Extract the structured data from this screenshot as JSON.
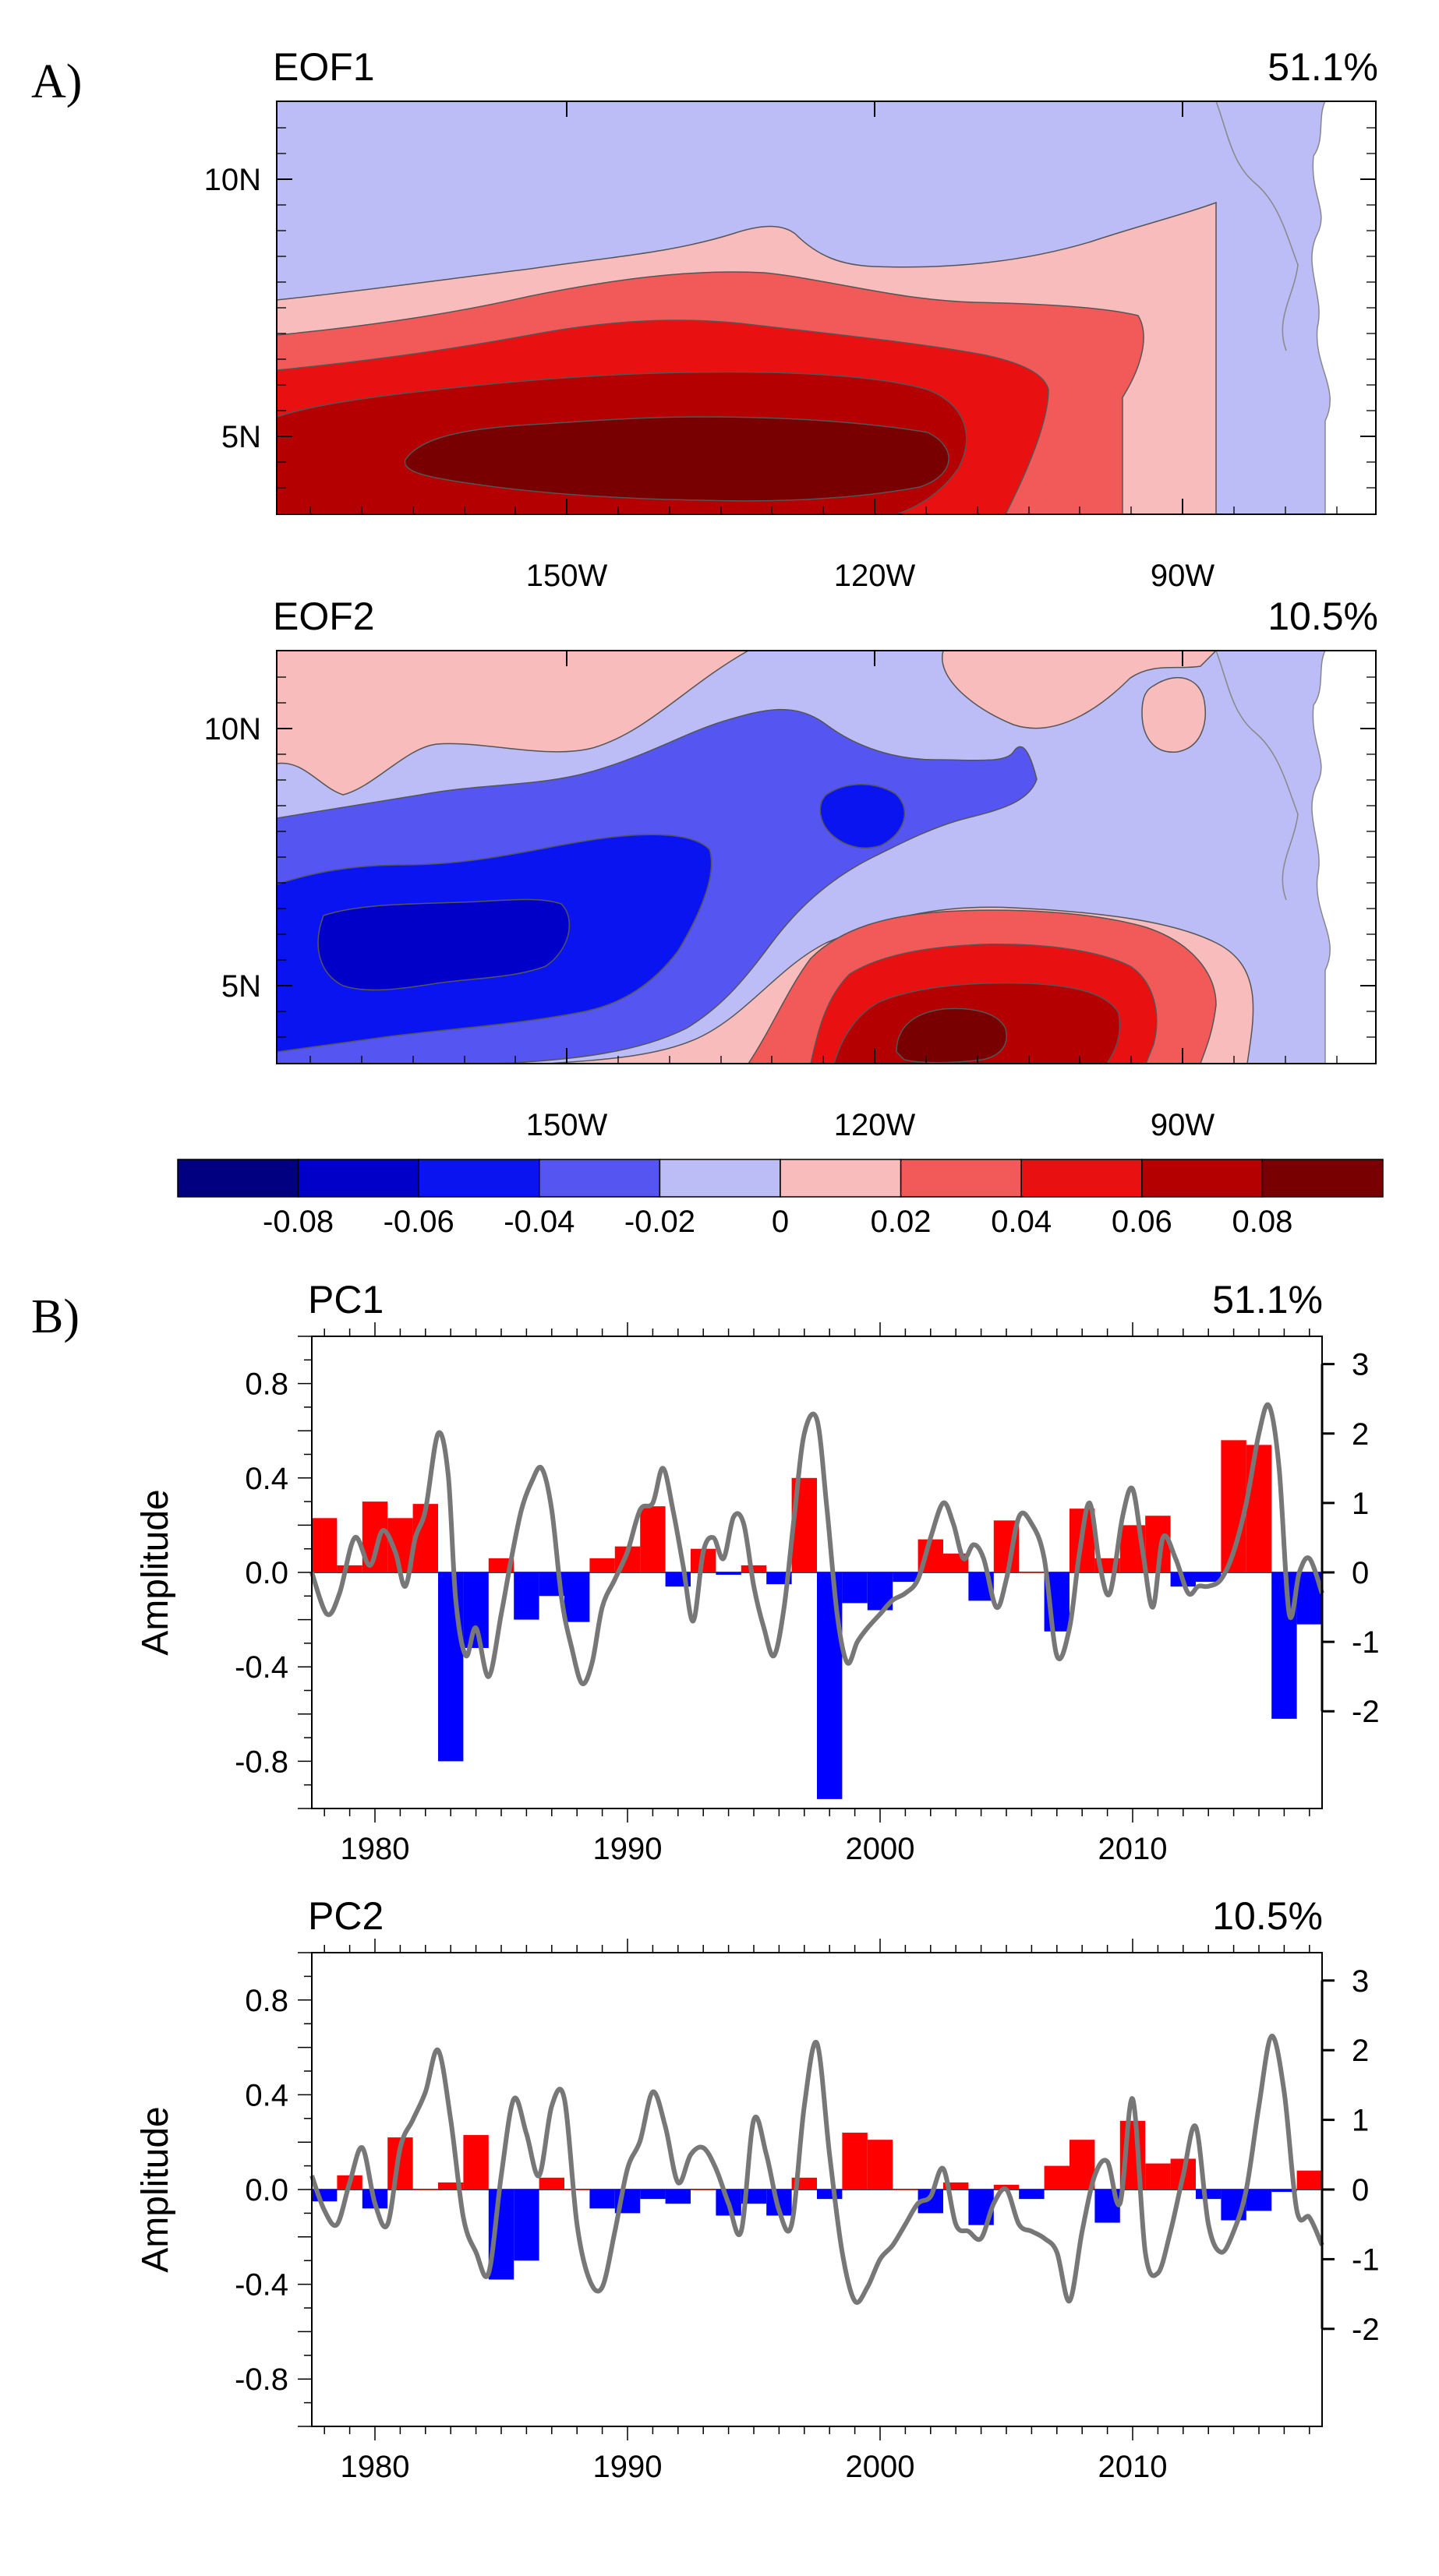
{
  "panel_labels": {
    "a": "A)",
    "b": "B)"
  },
  "chart_data": [
    {
      "type": "heatmap",
      "id": "eof1",
      "title": "EOF1",
      "variance_label": "51.1%",
      "x_ticks": [
        "150W",
        "120W",
        "90W"
      ],
      "y_ticks": [
        "10N",
        "5N"
      ],
      "regions": [
        {
          "level_index": 4,
          "value_range": "-0.02..0"
        },
        {
          "level_index": 5,
          "value_range": "0..0.02"
        },
        {
          "level_index": 6,
          "value_range": "0.02..0.04"
        },
        {
          "level_index": 7,
          "value_range": "0.04..0.06"
        },
        {
          "level_index": 8,
          "value_range": "0.06..0.08"
        }
      ]
    },
    {
      "type": "heatmap",
      "id": "eof2",
      "title": "EOF2",
      "variance_label": "10.5%",
      "x_ticks": [
        "150W",
        "120W",
        "90W"
      ],
      "y_ticks": [
        "10N",
        "5N"
      ],
      "regions": [
        {
          "level_index": 5,
          "value_range": "0..0.02"
        },
        {
          "level_index": 4,
          "value_range": "-0.02..0"
        },
        {
          "level_index": 3,
          "value_range": "-0.04..-0.02"
        },
        {
          "level_index": 2,
          "value_range": "-0.06..-0.04"
        },
        {
          "level_index": 1,
          "value_range": "-0.08..-0.06"
        },
        {
          "level_index": 6,
          "value_range": "0.02..0.04"
        },
        {
          "level_index": 7,
          "value_range": "0.04..0.06"
        },
        {
          "level_index": 8,
          "value_range": "0.06..0.08"
        },
        {
          "level_index": 9,
          "value_range": ">0.08"
        }
      ]
    },
    {
      "type": "bar",
      "id": "pc1",
      "title": "PC1",
      "variance_label": "51.1%",
      "ylabel": "Amplitude",
      "ylim": [
        -1.0,
        1.0
      ],
      "y_ticks": [
        "0.8",
        "0.4",
        "0.0",
        "-0.4",
        "-0.8"
      ],
      "y2lim": [
        -3.4,
        3.4
      ],
      "y2_ticks": [
        "3",
        "2",
        "1",
        "0",
        "-1",
        "-2"
      ],
      "x_ticks": [
        "1980",
        "1990",
        "2000",
        "2010"
      ],
      "xlim": [
        1977.5,
        2017.5
      ],
      "years": [
        1978,
        1979,
        1980,
        1981,
        1982,
        1983,
        1984,
        1985,
        1986,
        1987,
        1988,
        1989,
        1990,
        1991,
        1992,
        1993,
        1994,
        1995,
        1996,
        1997,
        1998,
        1999,
        2000,
        2001,
        2002,
        2003,
        2004,
        2005,
        2006,
        2007,
        2008,
        2009,
        2010,
        2011,
        2012,
        2013,
        2014,
        2015,
        2016,
        2017
      ],
      "values": [
        0.23,
        0.03,
        0.3,
        0.23,
        0.29,
        -0.8,
        -0.32,
        0.06,
        -0.2,
        -0.1,
        -0.21,
        0.06,
        0.11,
        0.28,
        -0.06,
        0.1,
        -0.01,
        0.03,
        -0.05,
        0.4,
        -0.96,
        -0.13,
        -0.16,
        -0.04,
        0.14,
        0.08,
        -0.12,
        0.22,
        0.0,
        -0.25,
        0.27,
        0.06,
        0.2,
        0.24,
        -0.06,
        -0.04,
        0.56,
        0.54,
        -0.62,
        -0.22
      ],
      "series_line": {
        "name": "index",
        "t": [
          1977.5,
          1978.1,
          1978.6,
          1979.2,
          1979.8,
          1980.3,
          1980.8,
          1981.2,
          1981.6,
          1982.0,
          1982.5,
          1982.9,
          1983.2,
          1983.6,
          1984.0,
          1984.5,
          1985.0,
          1985.4,
          1985.8,
          1986.2,
          1986.6,
          1987.0,
          1987.4,
          1987.8,
          1988.2,
          1988.6,
          1989.0,
          1989.5,
          1990.0,
          1990.5,
          1991.0,
          1991.4,
          1991.8,
          1992.2,
          1992.6,
          1993.0,
          1993.4,
          1993.8,
          1994.2,
          1994.6,
          1995.0,
          1995.4,
          1995.8,
          1996.2,
          1996.6,
          1997.0,
          1997.5,
          1997.9,
          1998.3,
          1998.7,
          1999.1,
          1999.5,
          2000.0,
          2000.5,
          2001.0,
          2001.5,
          2002.0,
          2002.5,
          2002.9,
          2003.3,
          2003.7,
          2004.1,
          2004.6,
          2005.0,
          2005.5,
          2006.0,
          2006.5,
          2007.0,
          2007.5,
          2007.9,
          2008.3,
          2008.7,
          2009.1,
          2009.6,
          2010.0,
          2010.4,
          2010.8,
          2011.2,
          2011.7,
          2012.2,
          2012.6,
          2013.0,
          2013.5,
          2014.0,
          2014.5,
          2015.0,
          2015.4,
          2015.8,
          2016.2,
          2016.6,
          2017.0,
          2017.5
        ],
        "v": [
          0.0,
          -0.6,
          -0.3,
          0.5,
          0.1,
          0.6,
          0.3,
          -0.2,
          0.5,
          0.9,
          2.0,
          1.4,
          -0.4,
          -1.2,
          -0.8,
          -1.5,
          -0.6,
          0.2,
          0.9,
          1.3,
          1.5,
          0.9,
          -0.4,
          -1.1,
          -1.6,
          -1.3,
          -0.5,
          -0.1,
          0.3,
          0.9,
          1.0,
          1.5,
          0.9,
          0.1,
          -0.7,
          0.3,
          0.5,
          0.2,
          0.8,
          0.7,
          -0.2,
          -0.8,
          -1.2,
          -0.5,
          0.8,
          2.0,
          2.2,
          0.9,
          -0.6,
          -1.3,
          -1.0,
          -0.8,
          -0.6,
          -0.4,
          -0.3,
          -0.1,
          0.5,
          1.0,
          0.7,
          0.2,
          0.4,
          0.2,
          -0.5,
          -0.1,
          0.8,
          0.7,
          0.2,
          -1.2,
          -0.8,
          0.3,
          1.0,
          0.1,
          -0.3,
          0.8,
          1.2,
          0.3,
          -0.5,
          0.5,
          0.2,
          -0.3,
          -0.2,
          -0.2,
          -0.1,
          0.3,
          1.0,
          2.0,
          2.4,
          1.5,
          -0.6,
          0.0,
          0.2,
          -0.3
        ]
      }
    },
    {
      "type": "bar",
      "id": "pc2",
      "title": "PC2",
      "variance_label": "10.5%",
      "ylabel": "Amplitude",
      "ylim": [
        -1.0,
        1.0
      ],
      "y_ticks": [
        "0.8",
        "0.4",
        "0.0",
        "-0.4",
        "-0.8"
      ],
      "y2lim": [
        -3.4,
        3.4
      ],
      "y2_ticks": [
        "3",
        "2",
        "1",
        "0",
        "-1",
        "-2"
      ],
      "x_ticks": [
        "1980",
        "1990",
        "2000",
        "2010"
      ],
      "xlim": [
        1977.5,
        2017.5
      ],
      "years": [
        1978,
        1979,
        1980,
        1981,
        1982,
        1983,
        1984,
        1985,
        1986,
        1987,
        1988,
        1989,
        1990,
        1991,
        1992,
        1993,
        1994,
        1995,
        1996,
        1997,
        1998,
        1999,
        2000,
        2001,
        2002,
        2003,
        2004,
        2005,
        2006,
        2007,
        2008,
        2009,
        2010,
        2011,
        2012,
        2013,
        2014,
        2015,
        2016,
        2017
      ],
      "values": [
        -0.05,
        0.06,
        -0.08,
        0.22,
        0.0,
        0.03,
        0.23,
        -0.38,
        -0.3,
        0.05,
        0.0,
        -0.08,
        -0.1,
        -0.04,
        -0.06,
        0.0,
        -0.11,
        -0.06,
        -0.11,
        0.05,
        -0.04,
        0.24,
        0.21,
        0.0,
        -0.1,
        0.03,
        -0.15,
        0.02,
        -0.04,
        0.1,
        0.21,
        -0.14,
        0.29,
        0.11,
        0.13,
        -0.04,
        -0.13,
        -0.09,
        -0.01,
        0.08
      ],
      "series_line": {
        "name": "index",
        "t": [
          1977.5,
          1978.0,
          1978.5,
          1979.0,
          1979.5,
          1980.0,
          1980.5,
          1981.0,
          1981.5,
          1982.0,
          1982.5,
          1983.0,
          1983.5,
          1984.0,
          1984.5,
          1985.0,
          1985.5,
          1986.0,
          1986.5,
          1987.0,
          1987.5,
          1988.0,
          1988.5,
          1989.0,
          1989.5,
          1990.0,
          1990.5,
          1991.0,
          1991.5,
          1992.0,
          1992.5,
          1993.0,
          1993.5,
          1994.0,
          1994.5,
          1995.0,
          1995.5,
          1996.0,
          1996.5,
          1997.0,
          1997.5,
          1998.0,
          1998.5,
          1999.0,
          1999.5,
          2000.0,
          2000.5,
          2001.0,
          2001.5,
          2002.0,
          2002.5,
          2003.0,
          2003.5,
          2004.0,
          2004.5,
          2005.0,
          2005.5,
          2006.0,
          2006.5,
          2007.0,
          2007.5,
          2008.0,
          2008.5,
          2009.0,
          2009.5,
          2010.0,
          2010.5,
          2011.0,
          2011.5,
          2012.0,
          2012.5,
          2013.0,
          2013.5,
          2014.0,
          2014.5,
          2015.0,
          2015.5,
          2016.0,
          2016.5,
          2017.0,
          2017.5
        ],
        "v": [
          0.2,
          -0.3,
          -0.5,
          0.1,
          0.6,
          -0.2,
          -0.5,
          0.6,
          1.0,
          1.4,
          2.0,
          1.0,
          -0.4,
          -0.9,
          -1.2,
          0.2,
          1.3,
          0.8,
          0.2,
          1.2,
          1.3,
          -0.5,
          -1.3,
          -1.4,
          -0.6,
          0.3,
          0.7,
          1.4,
          0.9,
          0.1,
          0.5,
          0.6,
          0.3,
          -0.2,
          -0.6,
          1.0,
          0.5,
          -0.3,
          -0.5,
          1.2,
          2.1,
          0.5,
          -0.9,
          -1.6,
          -1.4,
          -1.0,
          -0.8,
          -0.5,
          -0.2,
          -0.1,
          0.3,
          -0.5,
          -0.6,
          -0.7,
          -0.2,
          0.0,
          -0.5,
          -0.6,
          -0.7,
          -0.9,
          -1.6,
          -0.6,
          0.2,
          0.4,
          -0.2,
          1.3,
          -0.9,
          -1.2,
          -0.6,
          0.2,
          0.9,
          -0.5,
          -0.9,
          -0.6,
          0.0,
          1.2,
          2.2,
          1.4,
          -0.3,
          -0.4,
          -0.8
        ]
      }
    }
  ],
  "colorbar": {
    "levels": [
      -0.1,
      -0.08,
      -0.06,
      -0.04,
      -0.02,
      0,
      0.02,
      0.04,
      0.06,
      0.08,
      0.1
    ],
    "labels": [
      "-0.08",
      "-0.06",
      "-0.04",
      "-0.02",
      "0",
      "0.02",
      "0.04",
      "0.06",
      "0.08"
    ],
    "colors": [
      "#000080",
      "#0000c8",
      "#0a14f0",
      "#5555f2",
      "#bcbdf6",
      "#f8bcbc",
      "#f25a5a",
      "#e81010",
      "#b40000",
      "#780000"
    ]
  },
  "colors": {
    "positive_bar": "#ff0000",
    "negative_bar": "#0000ff",
    "index_line": "#777777",
    "contour_line": "#555555",
    "land": "#ffffff"
  }
}
